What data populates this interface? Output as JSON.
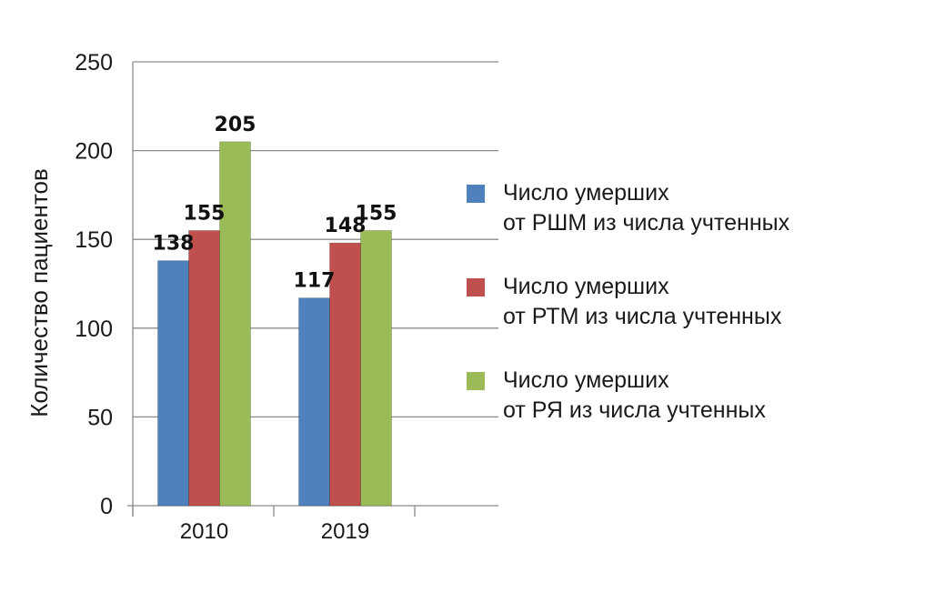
{
  "chart_data": {
    "type": "bar",
    "categories": [
      "2010",
      "2019"
    ],
    "series": [
      {
        "name": "Число умерших\nот РШМ из числа учтенных",
        "values": [
          138,
          117
        ],
        "color": "#4f81bd"
      },
      {
        "name": "Число умерших\nот РТМ из числа учтенных",
        "values": [
          155,
          148
        ],
        "color": "#c0504d"
      },
      {
        "name": "Число умерших\nот РЯ из числа учтенных",
        "values": [
          205,
          155
        ],
        "color": "#9bbb59"
      }
    ],
    "ylabel": "Количество пациентов",
    "xlabel": "",
    "ylim": [
      0,
      250
    ],
    "yticks": [
      "0",
      "50",
      "100",
      "150",
      "200",
      "250"
    ],
    "grid": true,
    "legend_position": "right"
  }
}
